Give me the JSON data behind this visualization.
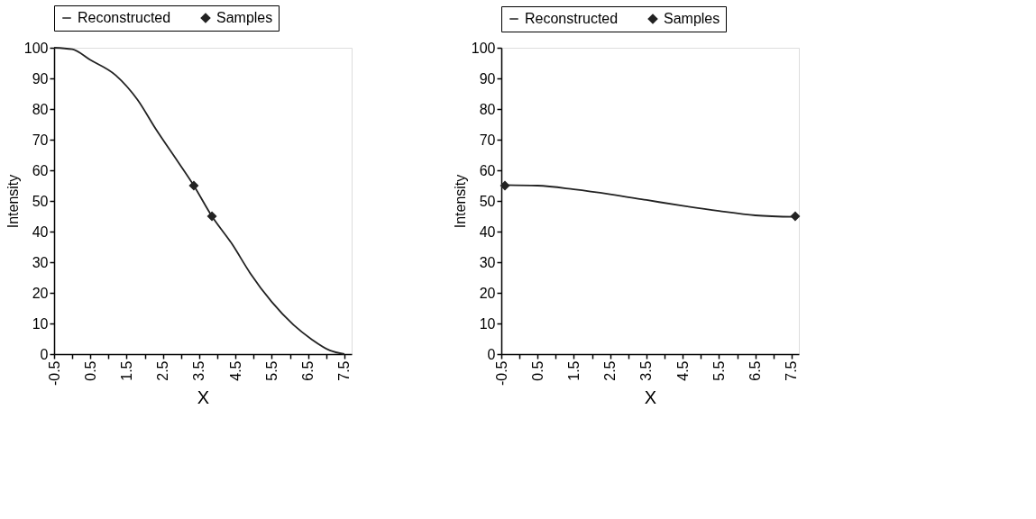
{
  "chart_data": [
    {
      "type": "line",
      "xlabel": "X",
      "ylabel": "Intensity",
      "legend": "top",
      "grid": false,
      "xlim": [
        -0.5,
        7.7
      ],
      "ylim": [
        0,
        100
      ],
      "xticks": [
        -0.5,
        {
          "value": 0,
          "label": null
        },
        0.5,
        {
          "value": 1,
          "label": null
        },
        1.5,
        {
          "value": 2,
          "label": null
        },
        2.5,
        {
          "value": 3,
          "label": null
        },
        3.5,
        {
          "value": 4,
          "label": null
        },
        4.5,
        {
          "value": 5,
          "label": null
        },
        5.5,
        {
          "value": 6,
          "label": null
        },
        6.5,
        {
          "value": 7,
          "label": null
        },
        7.5
      ],
      "yticks": [
        0,
        10,
        20,
        30,
        40,
        50,
        60,
        70,
        80,
        90,
        100
      ],
      "series": [
        {
          "name": "Reconstructed",
          "marker": "none",
          "line_style": "solid",
          "color": "#222222",
          "x": [
            -0.5,
            0.0,
            0.5,
            1.2,
            1.8,
            2.3,
            2.9,
            3.35,
            3.85,
            4.4,
            4.9,
            5.5,
            6.1,
            6.6,
            7.1,
            7.5
          ],
          "values": [
            100,
            99.5,
            96,
            91,
            83,
            73.5,
            63,
            55,
            45,
            36,
            26.5,
            17,
            9.5,
            4.8,
            1.2,
            0
          ]
        },
        {
          "name": "Samples",
          "type": "scatter",
          "marker": "diamond",
          "color": "#222222",
          "x": [
            3.35,
            3.85
          ],
          "values": [
            55,
            45
          ]
        }
      ]
    },
    {
      "type": "line",
      "xlabel": "X",
      "ylabel": "Intensity",
      "legend": "top",
      "grid": false,
      "xlim": [
        -0.5,
        7.7
      ],
      "ylim": [
        0,
        100
      ],
      "xticks": [
        -0.5,
        {
          "value": 0,
          "label": null
        },
        0.5,
        {
          "value": 1,
          "label": null
        },
        1.5,
        {
          "value": 2,
          "label": null
        },
        2.5,
        {
          "value": 3,
          "label": null
        },
        3.5,
        {
          "value": 4,
          "label": null
        },
        4.5,
        {
          "value": 5,
          "label": null
        },
        5.5,
        {
          "value": 6,
          "label": null
        },
        6.5,
        {
          "value": 7,
          "label": null
        },
        7.5
      ],
      "yticks": [
        0,
        10,
        20,
        30,
        40,
        50,
        60,
        70,
        80,
        90,
        100
      ],
      "series": [
        {
          "name": "Reconstructed",
          "marker": "none",
          "line_style": "solid",
          "color": "#222222",
          "x": [
            -0.4,
            0.5,
            1.5,
            2.5,
            3.5,
            4.5,
            5.5,
            6.5,
            7.6
          ],
          "values": [
            55.2,
            55,
            53.8,
            52.2,
            50.3,
            48.4,
            46.7,
            45.3,
            44.8
          ]
        },
        {
          "name": "Samples",
          "type": "scatter",
          "marker": "diamond",
          "color": "#222222",
          "x": [
            -0.4,
            7.6
          ],
          "values": [
            55,
            45
          ]
        }
      ]
    }
  ]
}
